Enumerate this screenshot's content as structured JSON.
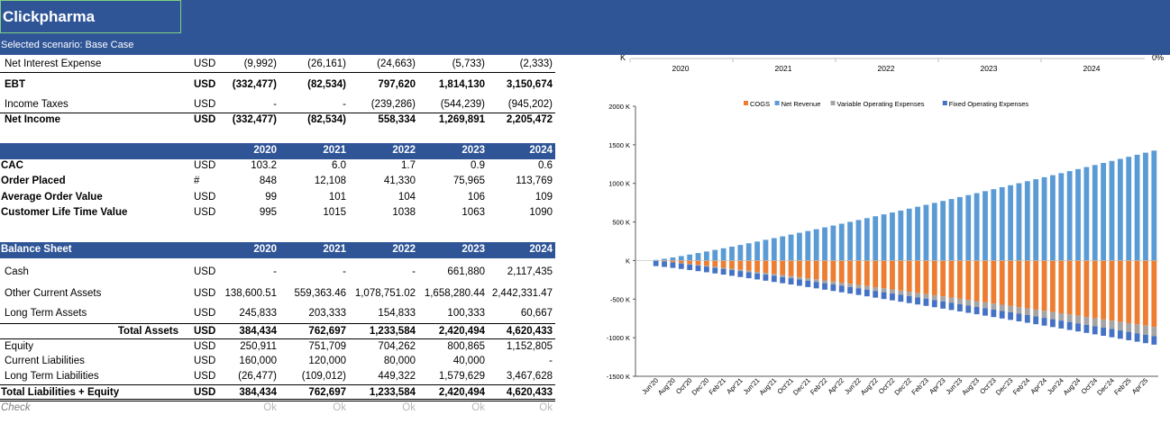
{
  "app": {
    "title": "Clickpharma",
    "scenario": "Selected scenario: Base Case"
  },
  "income": [
    {
      "label": "Net Interest Expense",
      "unit": "USD",
      "values": [
        "(9,992)",
        "(26,161)",
        "(24,663)",
        "(5,733)",
        "(2,333)"
      ]
    },
    {
      "label": "EBT",
      "unit": "USD",
      "values": [
        "(332,477)",
        "(82,534)",
        "797,620",
        "1,814,130",
        "3,150,674"
      ]
    },
    {
      "label": "Income Taxes",
      "unit": "USD",
      "values": [
        "-",
        "-",
        "(239,286)",
        "(544,239)",
        "(945,202)"
      ]
    },
    {
      "label": "Net Income",
      "unit": "USD",
      "values": [
        "(332,477)",
        "(82,534)",
        "558,334",
        "1,269,891",
        "2,205,472"
      ]
    }
  ],
  "kpi": {
    "years": [
      "2020",
      "2021",
      "2022",
      "2023",
      "2024"
    ],
    "rows": [
      {
        "label": "CAC",
        "unit": "USD",
        "values": [
          "103.2",
          "6.0",
          "1.7",
          "0.9",
          "0.6"
        ]
      },
      {
        "label": "Order Placed",
        "unit": "#",
        "values": [
          "848",
          "12,108",
          "41,330",
          "75,965",
          "113,769"
        ]
      },
      {
        "label": "Average Order Value",
        "unit": "USD",
        "values": [
          "99",
          "101",
          "104",
          "106",
          "109"
        ]
      },
      {
        "label": "Customer Life Time Value",
        "unit": "USD",
        "values": [
          "995",
          "1015",
          "1038",
          "1063",
          "1090"
        ]
      }
    ]
  },
  "balance": {
    "title": "Balance Sheet",
    "years": [
      "2020",
      "2021",
      "2022",
      "2023",
      "2024"
    ],
    "rows": [
      {
        "label": "Cash",
        "unit": "USD",
        "values": [
          "-",
          "-",
          "-",
          "661,880",
          "2,117,435"
        ]
      },
      {
        "label": "Other Current Assets",
        "unit": "USD",
        "values": [
          "138,600.51",
          "559,363.46",
          "1,078,751.02",
          "1,658,280.44",
          "2,442,331.47"
        ]
      },
      {
        "label": "Long Term Assets",
        "unit": "USD",
        "values": [
          "245,833",
          "203,333",
          "154,833",
          "100,333",
          "60,667"
        ]
      },
      {
        "label": "Total Assets",
        "unit": "USD",
        "values": [
          "384,434",
          "762,697",
          "1,233,584",
          "2,420,494",
          "4,620,433"
        ]
      },
      {
        "label": "Equity",
        "unit": "USD",
        "values": [
          "250,911",
          "751,709",
          "704,262",
          "800,865",
          "1,152,805"
        ]
      },
      {
        "label": "Current Liabilities",
        "unit": "USD",
        "values": [
          "160,000",
          "120,000",
          "80,000",
          "40,000",
          "-"
        ]
      },
      {
        "label": "Long Term Liabilities",
        "unit": "USD",
        "values": [
          "(26,477)",
          "(109,012)",
          "449,322",
          "1,579,629",
          "3,467,628"
        ]
      },
      {
        "label": "Total Liabilities + Equity",
        "unit": "USD",
        "values": [
          "384,434",
          "762,697",
          "1,233,584",
          "2,420,494",
          "4,620,433"
        ]
      }
    ],
    "check": {
      "label": "Check",
      "values": [
        "Ok",
        "Ok",
        "Ok",
        "Ok",
        "Ok"
      ]
    }
  },
  "chart_data": [
    {
      "type": "bar",
      "note_axis": "partial chart cut off at top",
      "categories": [
        "2020",
        "2021",
        "2022",
        "2023",
        "2024"
      ],
      "y_tick_top_left": "K",
      "y_tick_top_right": "0%"
    },
    {
      "type": "bar",
      "stacked": true,
      "legend": "top-center",
      "series": [
        {
          "name": "COGS",
          "color": "#ed7d31"
        },
        {
          "name": "Net Revenue",
          "color": "#5b9bd5"
        },
        {
          "name": "Variable Operating Expenses",
          "color": "#a5a5a5"
        },
        {
          "name": "Fixed Operating Expenses",
          "color": "#4472c4"
        }
      ],
      "ylim": [
        -1500,
        2000
      ],
      "y_ticks": [
        "2000 K",
        "1500 K",
        "1000 K",
        "500 K",
        "K",
        "-500 K",
        "-1000 K",
        "-1500 K"
      ],
      "x_labels": [
        "Jun'20",
        "Aug'20",
        "Oct'20",
        "Dec'20",
        "Feb'21",
        "Apr'21",
        "Jun'21",
        "Aug'21",
        "Oct'21",
        "Dec'21",
        "Feb'22",
        "Apr'22",
        "Jun'22",
        "Aug'22",
        "Oct'22",
        "Dec'22",
        "Feb'23",
        "Apr'23",
        "Jun'23",
        "Aug'23",
        "Oct'23",
        "Dec'23",
        "Feb'24",
        "Apr'24",
        "Jun'24",
        "Aug'24",
        "Oct'24",
        "Dec'24",
        "Feb'25",
        "Apr'25"
      ],
      "x_start": "Jun'20",
      "months": 60,
      "net_revenue_K_first": 8,
      "net_revenue_K_last": 1425,
      "cogs_K_first": -2,
      "cogs_K_last": -860,
      "variable_opex_K_last": -120,
      "fixed_opex_K_first": -70,
      "fixed_opex_K_last": -110
    }
  ]
}
